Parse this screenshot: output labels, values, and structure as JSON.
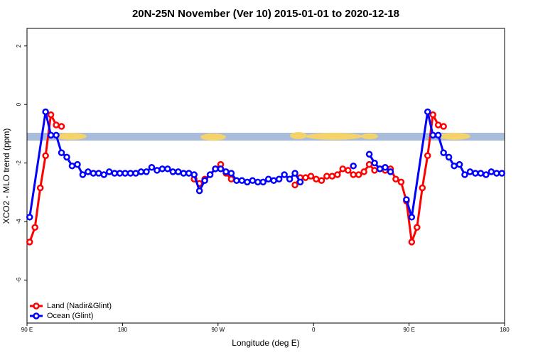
{
  "chart_data": {
    "type": "line",
    "title": "20N-25N November (Ver 10)   2015-01-01 to 2020-12-18",
    "x_label": "Longitude (deg E)",
    "y_label": "XCO2 - MLO trend (ppm)",
    "xlim": [
      90,
      540
    ],
    "ylim": [
      -7.47,
      2.6
    ],
    "xticks": [
      {
        "value": 90,
        "label": "90 E"
      },
      180,
      {
        "value": 270,
        "label": "90 W"
      },
      {
        "value": 360,
        "label": "0"
      },
      {
        "value": 450,
        "label": "90 E"
      },
      {
        "value": 540,
        "label": "180"
      }
    ],
    "yticks": [
      -6,
      -4,
      -2,
      0,
      2
    ],
    "legend": "bottomleft",
    "series": [
      {
        "name": "Land (Nadir&Glint)",
        "color": "#ff0000",
        "x": [
          92.5,
          97.5,
          102.5,
          107.5,
          112.5,
          117.5,
          122.5,
          127.5,
          132.5,
          137.5,
          142.5,
          147.5,
          152.5,
          157.5,
          162.5,
          167.5,
          172.5,
          177.5,
          182.5,
          187.5,
          192.5,
          197.5,
          202.5,
          207.5,
          212.5,
          217.5,
          222.5,
          227.5,
          232.5,
          237.5,
          242.5,
          247.5,
          252.5,
          257.5,
          262.5,
          267.5,
          272.5,
          277.5,
          282.5,
          287.5,
          292.5,
          297.5,
          302.5,
          307.5,
          312.5,
          317.5,
          322.5,
          327.5,
          332.5,
          337.5,
          342.5,
          347.5,
          352.5,
          357.5,
          362.5,
          367.5,
          372.5,
          377.5,
          382.5,
          387.5,
          392.5,
          397.5,
          402.5,
          407.5,
          412.5,
          417.5,
          422.5,
          427.5,
          432.5,
          437.5,
          442.5,
          447.5,
          452.5,
          457.5,
          462.5,
          467.5,
          472.5,
          477.5,
          482.5,
          487.5,
          492.5,
          497.5,
          502.5,
          507.5,
          512.5,
          517.5,
          522.5,
          527.5,
          532.5,
          537.5
        ],
        "values": [
          -4.7,
          -4.2,
          -2.85,
          -1.75,
          -0.35,
          -0.7,
          -0.75,
          null,
          null,
          null,
          null,
          null,
          null,
          null,
          null,
          null,
          null,
          null,
          null,
          null,
          null,
          null,
          null,
          null,
          null,
          null,
          null,
          null,
          null,
          null,
          null,
          -2.55,
          -2.7,
          -2.55,
          -2.4,
          -2.2,
          -2.05,
          -2.35,
          -2.55,
          null,
          null,
          null,
          null,
          null,
          null,
          null,
          null,
          null,
          null,
          null,
          -2.75,
          -2.5,
          -2.5,
          -2.45,
          -2.55,
          -2.6,
          -2.45,
          -2.45,
          -2.4,
          -2.2,
          -2.25,
          -2.4,
          -2.4,
          -2.3,
          -2.05,
          -2.25,
          -2.2,
          -2.25,
          -2.2,
          -2.55,
          -2.65,
          -3.3,
          -4.7,
          -4.2,
          -2.85,
          -1.75,
          -0.35,
          -0.7,
          -0.75,
          null,
          null,
          null,
          null,
          null,
          null,
          null,
          null,
          null,
          null,
          null
        ]
      },
      {
        "name": "Ocean (Glint)",
        "color": "#0000ff",
        "x": [
          92.5,
          107.5,
          112.5,
          117.5,
          122.5,
          127.5,
          132.5,
          137.5,
          142.5,
          147.5,
          152.5,
          157.5,
          162.5,
          167.5,
          172.5,
          177.5,
          182.5,
          187.5,
          192.5,
          197.5,
          202.5,
          207.5,
          212.5,
          217.5,
          222.5,
          227.5,
          232.5,
          237.5,
          242.5,
          247.5,
          252.5,
          257.5,
          262.5,
          267.5,
          272.5,
          277.5,
          282.5,
          287.5,
          292.5,
          297.5,
          302.5,
          307.5,
          312.5,
          317.5,
          322.5,
          327.5,
          332.5,
          337.5,
          342.5,
          347.5,
          352.5,
          397.5,
          402.5,
          412.5,
          417.5,
          422.5,
          427.5,
          432.5,
          437.5,
          447.5,
          452.5,
          467.5,
          472.5,
          477.5,
          482.5,
          487.5,
          492.5,
          497.5,
          502.5,
          507.5,
          512.5,
          517.5,
          522.5,
          527.5,
          532.5,
          537.5
        ],
        "values": [
          -3.85,
          -0.25,
          -1.05,
          -1.05,
          -1.65,
          -1.8,
          -2.1,
          -2.05,
          -2.4,
          -2.3,
          -2.35,
          -2.35,
          -2.4,
          -2.3,
          -2.35,
          -2.35,
          -2.35,
          -2.35,
          -2.35,
          -2.3,
          -2.3,
          -2.15,
          -2.25,
          -2.2,
          -2.2,
          -2.3,
          -2.3,
          -2.35,
          -2.35,
          -2.4,
          -2.95,
          -2.6,
          -2.4,
          -2.2,
          -2.2,
          -2.3,
          -2.35,
          -2.6,
          -2.6,
          -2.65,
          -2.6,
          -2.65,
          -2.65,
          -2.55,
          -2.6,
          -2.55,
          -2.4,
          -2.55,
          -2.35,
          -2.65,
          null,
          -2.1,
          null,
          -1.7,
          -2.0,
          -2.2,
          -2.15,
          -2.3,
          null,
          -3.25,
          -3.85,
          -0.25,
          -1.05,
          -1.05,
          -1.65,
          -1.8,
          -2.1,
          -2.05,
          -2.4,
          -2.3,
          -2.35,
          -2.35,
          -2.4,
          -2.3,
          -2.35,
          -2.35
        ]
      }
    ]
  }
}
